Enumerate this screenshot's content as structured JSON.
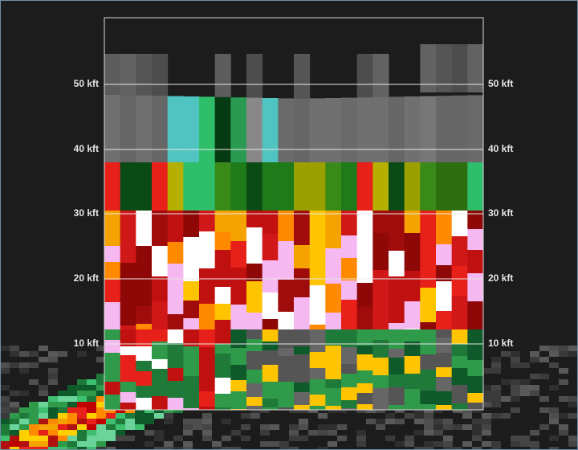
{
  "altitude_labels": [
    "50 kft",
    "40 kft",
    "30 kft",
    "20 kft",
    "10 kft"
  ]
}
